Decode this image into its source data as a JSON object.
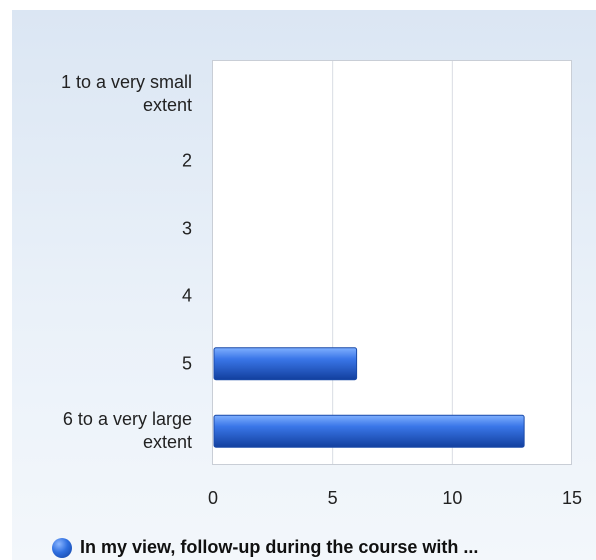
{
  "chart_data": {
    "type": "bar",
    "orientation": "horizontal",
    "categories": [
      "1 to a very small extent",
      "2",
      "3",
      "4",
      "5",
      "6 to a very large extent"
    ],
    "series": [
      {
        "name": "In my view, follow-up during the course with ...",
        "values": [
          0,
          0,
          0,
          0,
          6,
          13
        ]
      }
    ],
    "xlim": [
      0,
      15
    ],
    "xticks": [
      "0",
      "5",
      "10",
      "15"
    ],
    "grid": true,
    "legend": "bottom",
    "colors": {
      "bar": "#2457c4",
      "bar_light": "#6aa0ff",
      "grid": "#d9dde3"
    }
  },
  "category_labels": [
    [
      "1 to a very small",
      "extent"
    ],
    [
      "2"
    ],
    [
      "3"
    ],
    [
      "4"
    ],
    [
      "5"
    ],
    [
      "6 to a very large",
      "extent"
    ]
  ]
}
